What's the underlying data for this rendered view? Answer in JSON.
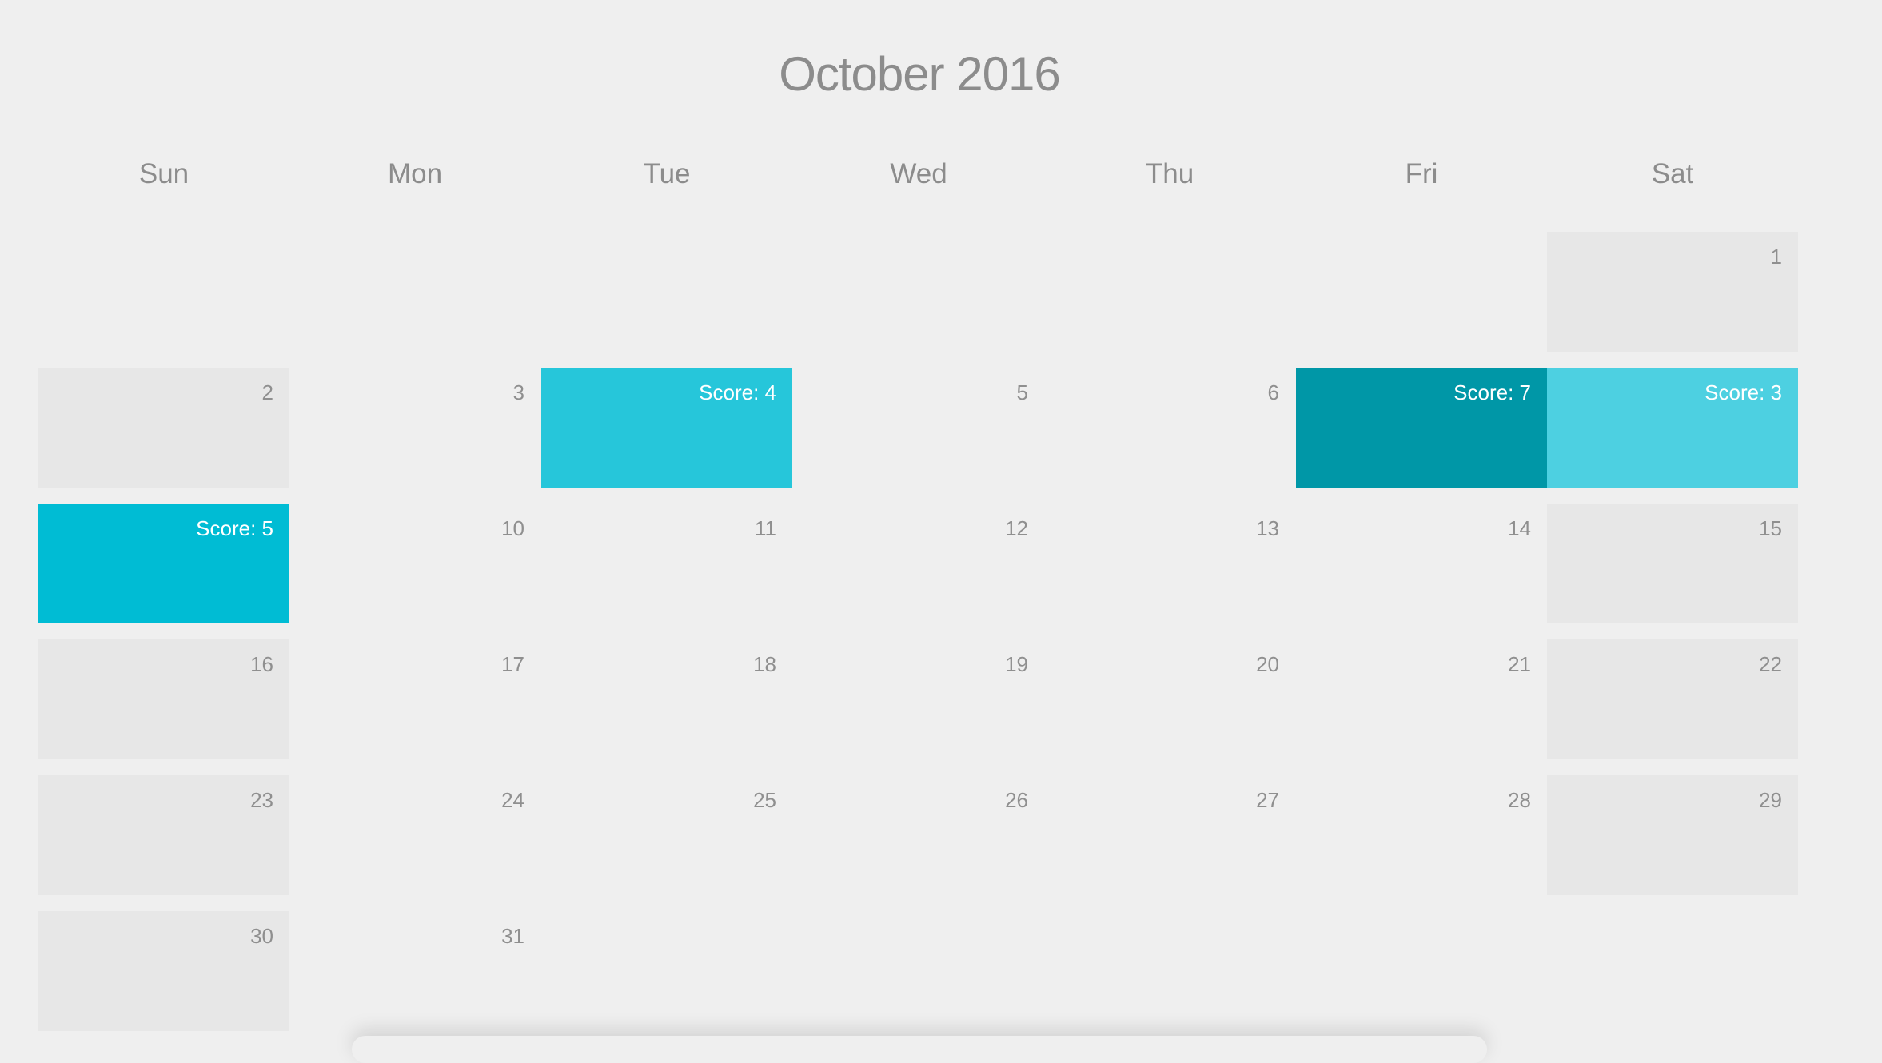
{
  "calendar": {
    "title": "October 2016",
    "weekdays": [
      "Sun",
      "Mon",
      "Tue",
      "Wed",
      "Thu",
      "Fri",
      "Sat"
    ],
    "colors": {
      "background": "#efefef",
      "weekend_cell": "#e7e7e7",
      "score_3": "#4dd0e1",
      "score_4": "#26c6da",
      "score_5": "#00bcd4",
      "score_7": "#0097a7"
    },
    "weeks": [
      [
        null,
        null,
        null,
        null,
        null,
        null,
        {
          "label": "1"
        }
      ],
      [
        {
          "label": "2"
        },
        {
          "label": "3"
        },
        {
          "label": "Score: 4",
          "score": 4
        },
        {
          "label": "5"
        },
        {
          "label": "6"
        },
        {
          "label": "Score: 7",
          "score": 7
        },
        {
          "label": "Score: 3",
          "score": 3
        }
      ],
      [
        {
          "label": "Score: 5",
          "score": 5
        },
        {
          "label": "10"
        },
        {
          "label": "11"
        },
        {
          "label": "12"
        },
        {
          "label": "13"
        },
        {
          "label": "14"
        },
        {
          "label": "15"
        }
      ],
      [
        {
          "label": "16"
        },
        {
          "label": "17"
        },
        {
          "label": "18"
        },
        {
          "label": "19"
        },
        {
          "label": "20"
        },
        {
          "label": "21"
        },
        {
          "label": "22"
        }
      ],
      [
        {
          "label": "23"
        },
        {
          "label": "24"
        },
        {
          "label": "25"
        },
        {
          "label": "26"
        },
        {
          "label": "27"
        },
        {
          "label": "28"
        },
        {
          "label": "29"
        }
      ],
      [
        {
          "label": "30"
        },
        {
          "label": "31"
        },
        null,
        null,
        null,
        null,
        null
      ]
    ]
  }
}
